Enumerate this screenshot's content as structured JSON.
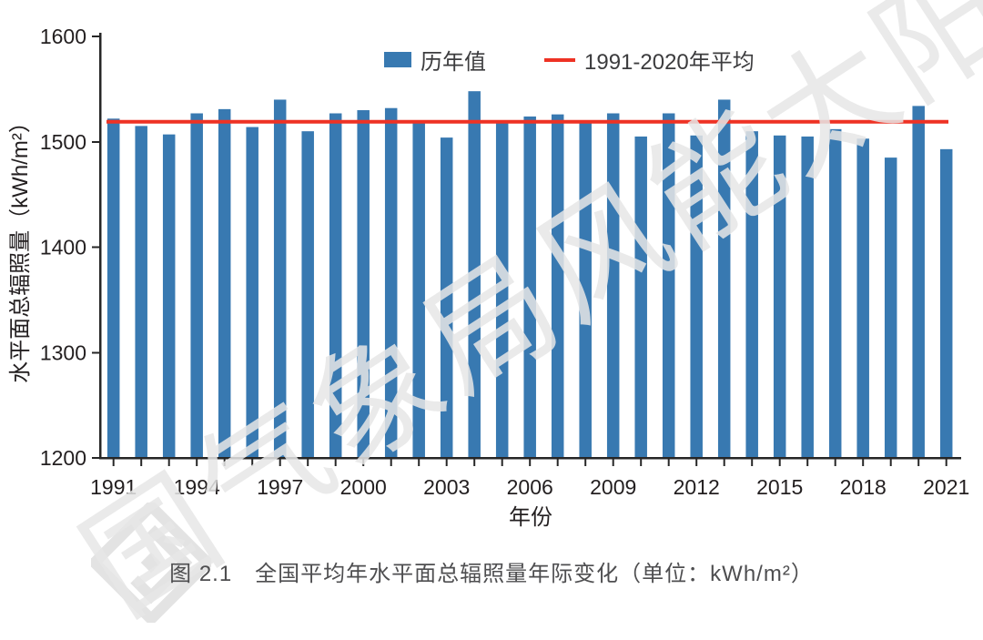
{
  "watermark": {
    "text": "国气象局风能太阳能",
    "color": "#E7E7E7"
  },
  "legend": {
    "series_label": "历年值",
    "average_label": "1991-2020年平均"
  },
  "caption": "图 2.1　全国平均年水平面总辐照量年际变化（单位：kWh/m²）",
  "chart_data": {
    "type": "bar",
    "title": "",
    "xlabel": "年份",
    "ylabel": "水平面总辐照量（kWh/m²）",
    "ylim": [
      1200,
      1600
    ],
    "ytick_step": 100,
    "xtick_label_interval": 3,
    "categories": [
      1991,
      1992,
      1993,
      1994,
      1995,
      1996,
      1997,
      1998,
      1999,
      2000,
      2001,
      2002,
      2003,
      2004,
      2005,
      2006,
      2007,
      2008,
      2009,
      2010,
      2011,
      2012,
      2013,
      2014,
      2015,
      2016,
      2017,
      2018,
      2019,
      2020,
      2021
    ],
    "series_name": "历年值",
    "values": [
      1522,
      1515,
      1507,
      1527,
      1531,
      1514,
      1540,
      1510,
      1527,
      1530,
      1532,
      1519,
      1504,
      1548,
      1518,
      1524,
      1526,
      1520,
      1527,
      1505,
      1527,
      1506,
      1540,
      1510,
      1506,
      1505,
      1512,
      1503,
      1485,
      1534,
      1493
    ],
    "average_line": {
      "label": "1991-2020年平均",
      "value": 1519
    },
    "bar_color": "#3879B1",
    "average_line_color": "#EE3224",
    "axis_color": "#262626",
    "legend_position": "top",
    "grid": false
  }
}
